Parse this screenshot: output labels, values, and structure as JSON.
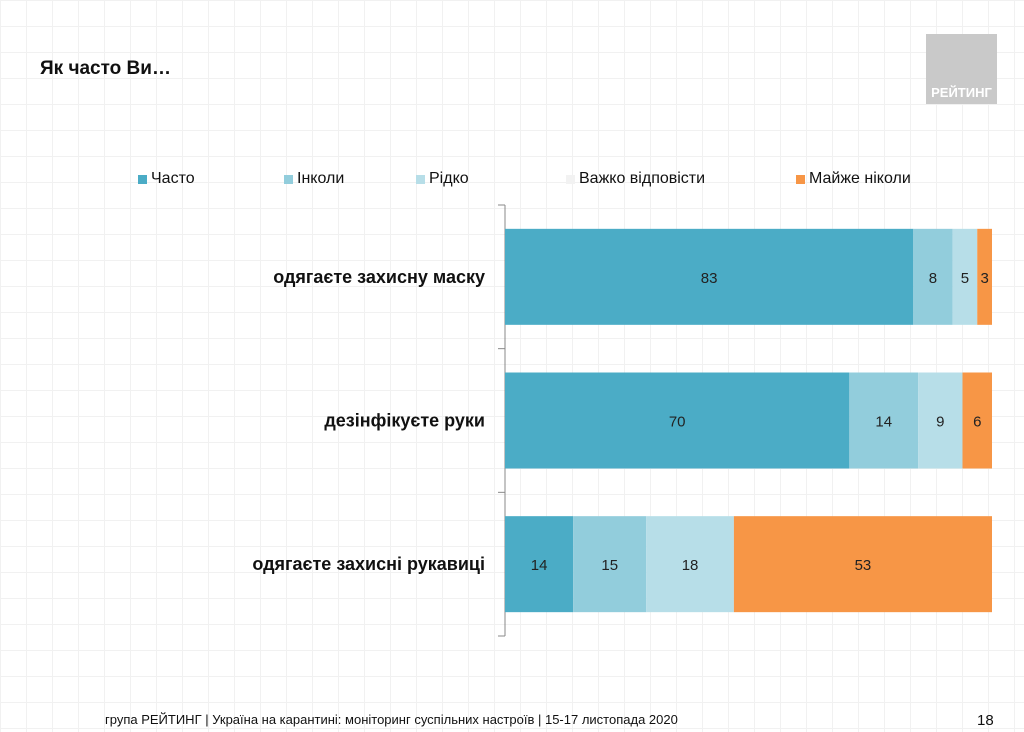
{
  "title": "Як часто Ви…",
  "logo_text": "РЕЙТИНГ",
  "footer": "група РЕЙТИНГ | Україна на карантині: моніторинг суспільних настроїв | 15-17 листопада 2020",
  "page_number": "18",
  "chart_data": {
    "type": "bar",
    "orientation": "horizontal",
    "stacked": true,
    "categories": [
      "одягаєте захисну маску",
      "дезінфікуєте руки",
      "одягаєте захисні рукавиці"
    ],
    "series": [
      {
        "name": "Часто",
        "color": "#4bacc6",
        "values": [
          83,
          70,
          14
        ]
      },
      {
        "name": "Інколи",
        "color": "#92cddc",
        "values": [
          8,
          14,
          15
        ]
      },
      {
        "name": "Рідко",
        "color": "#b7dee8",
        "values": [
          5,
          9,
          18
        ]
      },
      {
        "name": "Важко відповісти",
        "color": "#f2f2f2",
        "values": [
          null,
          null,
          null
        ]
      },
      {
        "name": "Майже ніколи",
        "color": "#f79646",
        "values": [
          3,
          6,
          53
        ]
      }
    ],
    "legend": "top",
    "grid": false,
    "xlim": [
      0,
      100
    ]
  }
}
